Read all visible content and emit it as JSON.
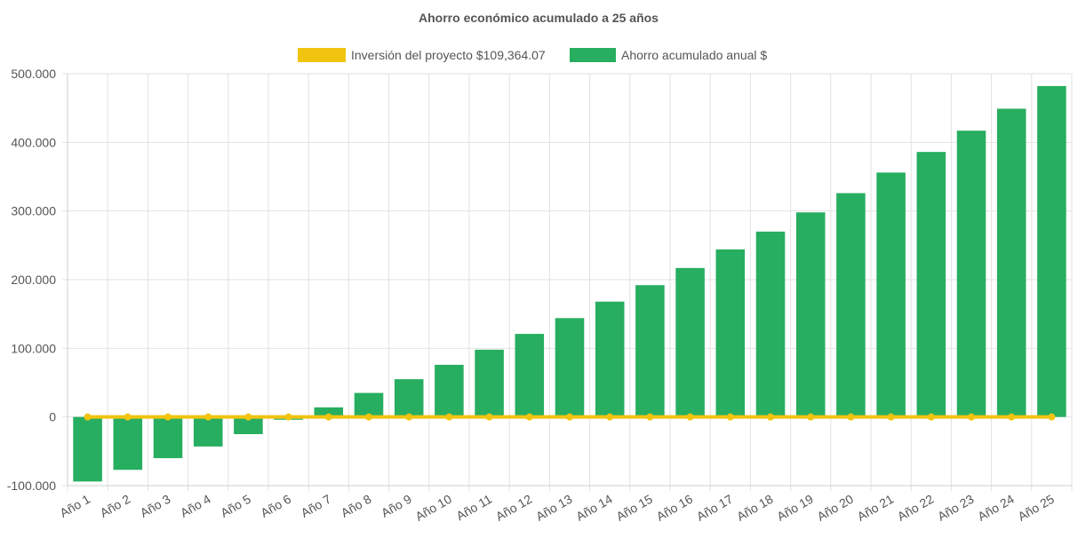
{
  "chart_data": {
    "type": "bar",
    "title": "Ahorro económico acumulado a 25 años",
    "categories": [
      "Año 1",
      "Año 2",
      "Año 3",
      "Año 4",
      "Año 5",
      "Año 6",
      "Año 7",
      "Año 8",
      "Año 9",
      "Año 10",
      "Año 11",
      "Año 12",
      "Año 13",
      "Año 14",
      "Año 15",
      "Año 16",
      "Año 17",
      "Año 18",
      "Año 19",
      "Año 20",
      "Año 21",
      "Año 22",
      "Año 23",
      "Año 24",
      "Año 25"
    ],
    "series": [
      {
        "name": "Inversión del proyecto $109,364.07",
        "type": "line",
        "color": "#f1c40f",
        "values": [
          0,
          0,
          0,
          0,
          0,
          0,
          0,
          0,
          0,
          0,
          0,
          0,
          0,
          0,
          0,
          0,
          0,
          0,
          0,
          0,
          0,
          0,
          0,
          0,
          0
        ]
      },
      {
        "name": "Ahorro acumulado anual $",
        "type": "bar",
        "color": "#27ae60",
        "values": [
          -94000,
          -77000,
          -60000,
          -43000,
          -25000,
          -4000,
          14000,
          35000,
          55000,
          76000,
          98000,
          121000,
          144000,
          168000,
          192000,
          217000,
          244000,
          270000,
          298000,
          326000,
          356000,
          386000,
          417000,
          449000,
          482000
        ]
      }
    ],
    "ylim": [
      -100000,
      500000
    ],
    "yticks": [
      -100000,
      0,
      100000,
      200000,
      300000,
      400000,
      500000
    ],
    "ytick_labels": [
      "-100.000",
      "0",
      "100.000",
      "200.000",
      "300.000",
      "400.000",
      "500.000"
    ],
    "xlabel": "",
    "ylabel": "",
    "grid": true,
    "legend_position": "top"
  }
}
